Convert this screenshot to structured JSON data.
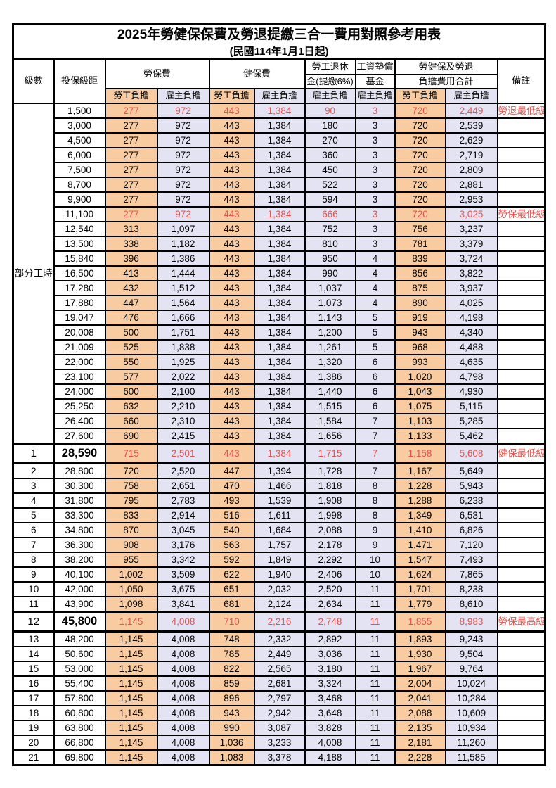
{
  "title": "2025年勞健保保費及勞退提繳三合一費用對照參考用表",
  "subtitle": "(民國114年1月1日起)",
  "colors": {
    "employee_bg": "#F8CBA0",
    "employer_bg": "#E4E3F3",
    "highlight_text": "#E8504C",
    "border": "#000000"
  },
  "header": {
    "level": "級數",
    "bracket": "投保級距",
    "labor_ins": "勞保費",
    "health_ins": "健保費",
    "pension_l1": "勞工退休",
    "pension_l2": "金(提繳6%)",
    "wage_fund_l1": "工資墊償",
    "wage_fund_l2": "基金",
    "total_l1": "勞健保及勞退",
    "total_l2": "負擔費用合計",
    "remark": "備註",
    "employee": "勞工負擔",
    "employer": "雇主負擔"
  },
  "section": {
    "label": "部分工時",
    "rowspan": 23
  },
  "rows": [
    {
      "level": "",
      "bracket": "1,500",
      "values": [
        "277",
        "972",
        "443",
        "1,384",
        "90",
        "3",
        "720",
        "2,449"
      ],
      "remark": "勞退最低級距",
      "highlight": true,
      "bold": false
    },
    {
      "level": "",
      "bracket": "3,000",
      "values": [
        "277",
        "972",
        "443",
        "1,384",
        "180",
        "3",
        "720",
        "2,539"
      ],
      "remark": "",
      "highlight": false,
      "bold": false
    },
    {
      "level": "",
      "bracket": "4,500",
      "values": [
        "277",
        "972",
        "443",
        "1,384",
        "270",
        "3",
        "720",
        "2,629"
      ],
      "remark": "",
      "highlight": false,
      "bold": false
    },
    {
      "level": "",
      "bracket": "6,000",
      "values": [
        "277",
        "972",
        "443",
        "1,384",
        "360",
        "3",
        "720",
        "2,719"
      ],
      "remark": "",
      "highlight": false,
      "bold": false
    },
    {
      "level": "",
      "bracket": "7,500",
      "values": [
        "277",
        "972",
        "443",
        "1,384",
        "450",
        "3",
        "720",
        "2,809"
      ],
      "remark": "",
      "highlight": false,
      "bold": false
    },
    {
      "level": "",
      "bracket": "8,700",
      "values": [
        "277",
        "972",
        "443",
        "1,384",
        "522",
        "3",
        "720",
        "2,881"
      ],
      "remark": "",
      "highlight": false,
      "bold": false
    },
    {
      "level": "",
      "bracket": "9,900",
      "values": [
        "277",
        "972",
        "443",
        "1,384",
        "594",
        "3",
        "720",
        "2,953"
      ],
      "remark": "",
      "highlight": false,
      "bold": false
    },
    {
      "level": "",
      "bracket": "11,100",
      "values": [
        "277",
        "972",
        "443",
        "1,384",
        "666",
        "3",
        "720",
        "3,025"
      ],
      "remark": "勞保最低級距",
      "highlight": true,
      "bold": false
    },
    {
      "level": "",
      "bracket": "12,540",
      "values": [
        "313",
        "1,097",
        "443",
        "1,384",
        "752",
        "3",
        "756",
        "3,237"
      ],
      "remark": "",
      "highlight": false,
      "bold": false
    },
    {
      "level": "",
      "bracket": "13,500",
      "values": [
        "338",
        "1,182",
        "443",
        "1,384",
        "810",
        "3",
        "781",
        "3,379"
      ],
      "remark": "",
      "highlight": false,
      "bold": false
    },
    {
      "level": "",
      "bracket": "15,840",
      "values": [
        "396",
        "1,386",
        "443",
        "1,384",
        "950",
        "4",
        "839",
        "3,724"
      ],
      "remark": "",
      "highlight": false,
      "bold": false
    },
    {
      "level": "",
      "bracket": "16,500",
      "values": [
        "413",
        "1,444",
        "443",
        "1,384",
        "990",
        "4",
        "856",
        "3,822"
      ],
      "remark": "",
      "highlight": false,
      "bold": false
    },
    {
      "level": "",
      "bracket": "17,280",
      "values": [
        "432",
        "1,512",
        "443",
        "1,384",
        "1,037",
        "4",
        "875",
        "3,937"
      ],
      "remark": "",
      "highlight": false,
      "bold": false
    },
    {
      "level": "",
      "bracket": "17,880",
      "values": [
        "447",
        "1,564",
        "443",
        "1,384",
        "1,073",
        "4",
        "890",
        "4,025"
      ],
      "remark": "",
      "highlight": false,
      "bold": false
    },
    {
      "level": "",
      "bracket": "19,047",
      "values": [
        "476",
        "1,666",
        "443",
        "1,384",
        "1,143",
        "5",
        "919",
        "4,198"
      ],
      "remark": "",
      "highlight": false,
      "bold": false
    },
    {
      "level": "",
      "bracket": "20,008",
      "values": [
        "500",
        "1,751",
        "443",
        "1,384",
        "1,200",
        "5",
        "943",
        "4,340"
      ],
      "remark": "",
      "highlight": false,
      "bold": false
    },
    {
      "level": "",
      "bracket": "21,009",
      "values": [
        "525",
        "1,838",
        "443",
        "1,384",
        "1,261",
        "5",
        "968",
        "4,488"
      ],
      "remark": "",
      "highlight": false,
      "bold": false
    },
    {
      "level": "",
      "bracket": "22,000",
      "values": [
        "550",
        "1,925",
        "443",
        "1,384",
        "1,320",
        "6",
        "993",
        "4,635"
      ],
      "remark": "",
      "highlight": false,
      "bold": false
    },
    {
      "level": "",
      "bracket": "23,100",
      "values": [
        "577",
        "2,022",
        "443",
        "1,384",
        "1,386",
        "6",
        "1,020",
        "4,798"
      ],
      "remark": "",
      "highlight": false,
      "bold": false
    },
    {
      "level": "",
      "bracket": "24,000",
      "values": [
        "600",
        "2,100",
        "443",
        "1,384",
        "1,440",
        "6",
        "1,043",
        "4,930"
      ],
      "remark": "",
      "highlight": false,
      "bold": false
    },
    {
      "level": "",
      "bracket": "25,250",
      "values": [
        "632",
        "2,210",
        "443",
        "1,384",
        "1,515",
        "6",
        "1,075",
        "5,115"
      ],
      "remark": "",
      "highlight": false,
      "bold": false
    },
    {
      "level": "",
      "bracket": "26,400",
      "values": [
        "660",
        "2,310",
        "443",
        "1,384",
        "1,584",
        "7",
        "1,103",
        "5,285"
      ],
      "remark": "",
      "highlight": false,
      "bold": false
    },
    {
      "level": "",
      "bracket": "27,600",
      "values": [
        "690",
        "2,415",
        "443",
        "1,384",
        "1,656",
        "7",
        "1,133",
        "5,462"
      ],
      "remark": "",
      "highlight": false,
      "bold": false
    },
    {
      "level": "1",
      "bracket": "28,590",
      "values": [
        "715",
        "2,501",
        "443",
        "1,384",
        "1,715",
        "7",
        "1,158",
        "5,608"
      ],
      "remark": "健保最低級距",
      "highlight": true,
      "bold": true
    },
    {
      "level": "2",
      "bracket": "28,800",
      "values": [
        "720",
        "2,520",
        "447",
        "1,394",
        "1,728",
        "7",
        "1,167",
        "5,649"
      ],
      "remark": "",
      "highlight": false,
      "bold": false
    },
    {
      "level": "3",
      "bracket": "30,300",
      "values": [
        "758",
        "2,651",
        "470",
        "1,466",
        "1,818",
        "8",
        "1,228",
        "5,943"
      ],
      "remark": "",
      "highlight": false,
      "bold": false
    },
    {
      "level": "4",
      "bracket": "31,800",
      "values": [
        "795",
        "2,783",
        "493",
        "1,539",
        "1,908",
        "8",
        "1,288",
        "6,238"
      ],
      "remark": "",
      "highlight": false,
      "bold": false
    },
    {
      "level": "5",
      "bracket": "33,300",
      "values": [
        "833",
        "2,914",
        "516",
        "1,611",
        "1,998",
        "8",
        "1,349",
        "6,531"
      ],
      "remark": "",
      "highlight": false,
      "bold": false
    },
    {
      "level": "6",
      "bracket": "34,800",
      "values": [
        "870",
        "3,045",
        "540",
        "1,684",
        "2,088",
        "9",
        "1,410",
        "6,826"
      ],
      "remark": "",
      "highlight": false,
      "bold": false
    },
    {
      "level": "7",
      "bracket": "36,300",
      "values": [
        "908",
        "3,176",
        "563",
        "1,757",
        "2,178",
        "9",
        "1,471",
        "7,120"
      ],
      "remark": "",
      "highlight": false,
      "bold": false
    },
    {
      "level": "8",
      "bracket": "38,200",
      "values": [
        "955",
        "3,342",
        "592",
        "1,849",
        "2,292",
        "10",
        "1,547",
        "7,493"
      ],
      "remark": "",
      "highlight": false,
      "bold": false
    },
    {
      "level": "9",
      "bracket": "40,100",
      "values": [
        "1,002",
        "3,509",
        "622",
        "1,940",
        "2,406",
        "10",
        "1,624",
        "7,865"
      ],
      "remark": "",
      "highlight": false,
      "bold": false
    },
    {
      "level": "10",
      "bracket": "42,000",
      "values": [
        "1,050",
        "3,675",
        "651",
        "2,032",
        "2,520",
        "11",
        "1,701",
        "8,238"
      ],
      "remark": "",
      "highlight": false,
      "bold": false
    },
    {
      "level": "11",
      "bracket": "43,900",
      "values": [
        "1,098",
        "3,841",
        "681",
        "2,124",
        "2,634",
        "11",
        "1,779",
        "8,610"
      ],
      "remark": "",
      "highlight": false,
      "bold": false
    },
    {
      "level": "12",
      "bracket": "45,800",
      "values": [
        "1,145",
        "4,008",
        "710",
        "2,216",
        "2,748",
        "11",
        "1,855",
        "8,983"
      ],
      "remark": "勞保最高級距",
      "highlight": true,
      "bold": true
    },
    {
      "level": "13",
      "bracket": "48,200",
      "values": [
        "1,145",
        "4,008",
        "748",
        "2,332",
        "2,892",
        "11",
        "1,893",
        "9,243"
      ],
      "remark": "",
      "highlight": false,
      "bold": false
    },
    {
      "level": "14",
      "bracket": "50,600",
      "values": [
        "1,145",
        "4,008",
        "785",
        "2,449",
        "3,036",
        "11",
        "1,930",
        "9,504"
      ],
      "remark": "",
      "highlight": false,
      "bold": false
    },
    {
      "level": "15",
      "bracket": "53,000",
      "values": [
        "1,145",
        "4,008",
        "822",
        "2,565",
        "3,180",
        "11",
        "1,967",
        "9,764"
      ],
      "remark": "",
      "highlight": false,
      "bold": false
    },
    {
      "level": "16",
      "bracket": "55,400",
      "values": [
        "1,145",
        "4,008",
        "859",
        "2,681",
        "3,324",
        "11",
        "2,004",
        "10,024"
      ],
      "remark": "",
      "highlight": false,
      "bold": false
    },
    {
      "level": "17",
      "bracket": "57,800",
      "values": [
        "1,145",
        "4,008",
        "896",
        "2,797",
        "3,468",
        "11",
        "2,041",
        "10,284"
      ],
      "remark": "",
      "highlight": false,
      "bold": false
    },
    {
      "level": "18",
      "bracket": "60,800",
      "values": [
        "1,145",
        "4,008",
        "943",
        "2,942",
        "3,648",
        "11",
        "2,088",
        "10,609"
      ],
      "remark": "",
      "highlight": false,
      "bold": false
    },
    {
      "level": "19",
      "bracket": "63,800",
      "values": [
        "1,145",
        "4,008",
        "990",
        "3,087",
        "3,828",
        "11",
        "2,135",
        "10,934"
      ],
      "remark": "",
      "highlight": false,
      "bold": false
    },
    {
      "level": "20",
      "bracket": "66,800",
      "values": [
        "1,145",
        "4,008",
        "1,036",
        "3,233",
        "4,008",
        "11",
        "2,181",
        "11,260"
      ],
      "remark": "",
      "highlight": false,
      "bold": false
    },
    {
      "level": "21",
      "bracket": "69,800",
      "values": [
        "1,145",
        "4,008",
        "1,083",
        "3,378",
        "4,188",
        "11",
        "2,228",
        "11,585"
      ],
      "remark": "",
      "highlight": false,
      "bold": false
    }
  ]
}
